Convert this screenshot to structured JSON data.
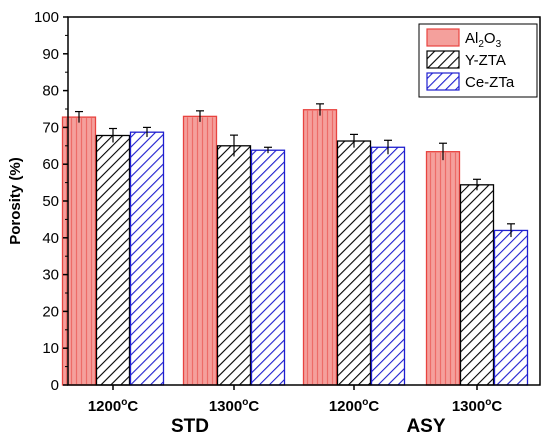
{
  "chart_data": {
    "type": "bar",
    "ylabel": "Porosity (%)",
    "ylim": [
      0,
      100
    ],
    "yticks": [
      0,
      10,
      20,
      30,
      40,
      50,
      60,
      70,
      80,
      90,
      100
    ],
    "categories": [
      {
        "temp": "1200",
        "unit": "C",
        "deg": "o",
        "group": "STD"
      },
      {
        "temp": "1300",
        "unit": "C",
        "deg": "o",
        "group": "STD"
      },
      {
        "temp": "1200",
        "unit": "C",
        "deg": "o",
        "group": "ASY"
      },
      {
        "temp": "1300",
        "unit": "C",
        "deg": "o",
        "group": "ASY"
      }
    ],
    "groups": [
      "STD",
      "ASY"
    ],
    "series": [
      {
        "name": "Al2O3",
        "legend_main": "Al",
        "legend_sub1": "2",
        "legend_mid": "O",
        "legend_sub2": "3",
        "values": [
          72.8,
          73.0,
          74.8,
          63.4
        ],
        "errors": [
          1.5,
          1.5,
          1.6,
          2.3
        ],
        "color": "#e8433f",
        "fill": "#f4a09c",
        "pattern": "solid"
      },
      {
        "name": "Y-ZTA",
        "values": [
          67.8,
          65.0,
          66.3,
          54.4
        ],
        "errors": [
          1.9,
          2.9,
          1.8,
          1.5
        ],
        "color": "#000000",
        "fill": "#ffffff",
        "pattern": "hatch"
      },
      {
        "name": "Ce-ZTa",
        "values": [
          68.7,
          63.8,
          64.6,
          42.0
        ],
        "errors": [
          1.3,
          0.8,
          1.9,
          1.8
        ],
        "color": "#1f1fcf",
        "fill": "#ffffff",
        "pattern": "hatch"
      }
    ],
    "legend_position": "top-right",
    "grid": false
  }
}
